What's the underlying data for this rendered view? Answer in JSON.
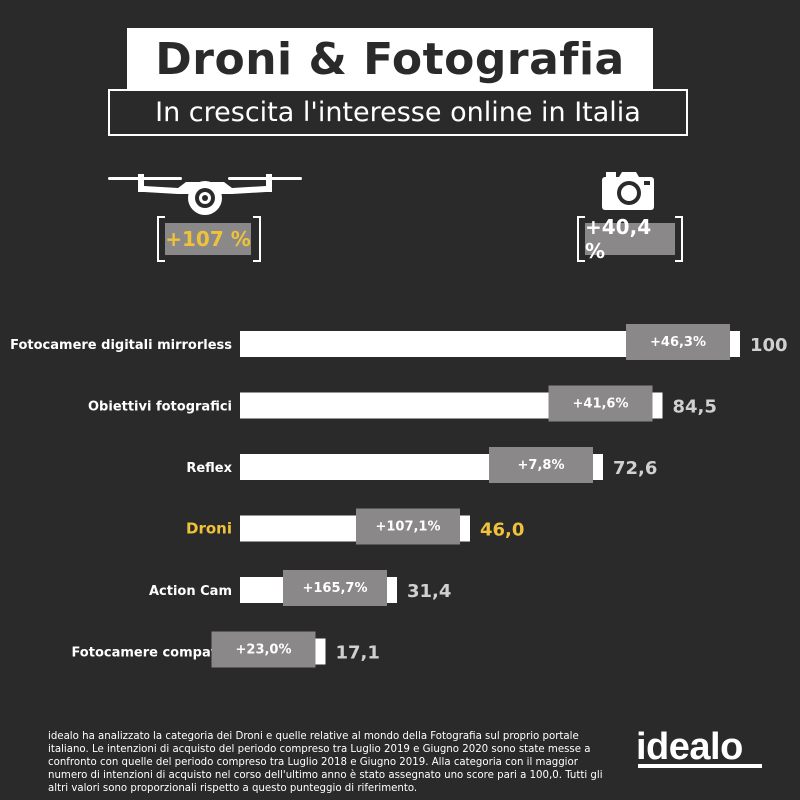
{
  "header": {
    "title": "Droni & Fotografia",
    "subtitle": "In crescita l'interesse online in Italia"
  },
  "badges": {
    "drone": {
      "icon": "drone-icon",
      "value": "+107 %"
    },
    "camera": {
      "icon": "camera-icon",
      "value": "+40,4 %"
    }
  },
  "colors": {
    "background": "#2b2a2a",
    "bar": "#ffffff",
    "box": "#8a8888",
    "highlight": "#f0c23b",
    "value": "#d0d0d0"
  },
  "chart_data": {
    "type": "bar",
    "orientation": "horizontal",
    "categories": [
      "Fotocamere digitali mirrorless",
      "Obiettivi fotografici",
      "Reflex",
      "Droni",
      "Action Cam",
      "Fotocamere compatte"
    ],
    "values": [
      100,
      84.5,
      72.6,
      46.0,
      31.4,
      17.1
    ],
    "value_labels": [
      "100",
      "84,5",
      "72,6",
      "46,0",
      "31,4",
      "17,1"
    ],
    "growth_labels": [
      "+46,3%",
      "+41,6%",
      "+7,8%",
      "+107,1%",
      "+165,7%",
      "+23,0%"
    ],
    "highlight": "Droni",
    "xlim": [
      0,
      100
    ],
    "grid": false
  },
  "footer": {
    "text": "idealo ha analizzato la categoria dei Droni e quelle relative al mondo della Fotografia sul proprio portale italiano. Le intenzioni di acquisto del periodo compreso tra Luglio 2019 e Giugno 2020 sono state messe a confronto con quelle del periodo compreso tra Luglio 2018 e Giugno 2019. Alla categoria con il maggior numero di intenzioni di acquisto nel corso dell'ultimo anno è stato assegnato uno score pari a 100,0. Tutti gli altri valori sono proporzionali rispetto a questo punteggio di riferimento.",
    "logo": "idealo"
  }
}
